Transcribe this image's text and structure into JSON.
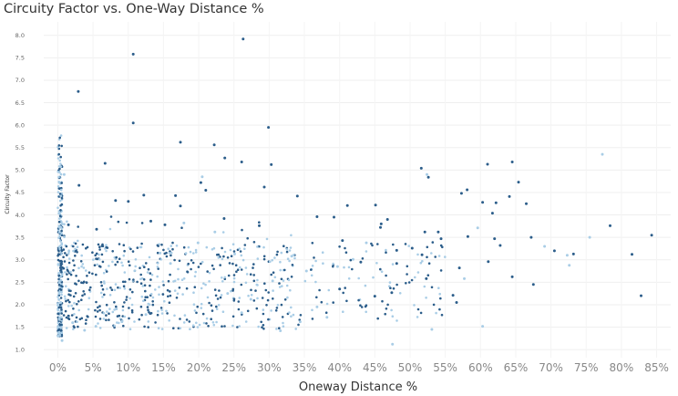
{
  "chart_data": {
    "type": "scatter",
    "title": "Circuity Factor vs. One-Way Distance %",
    "xlabel": "Oneway Distance %",
    "ylabel": "Circuity Factor",
    "xlim": [
      -0.02,
      0.87
    ],
    "ylim": [
      0.82,
      8.3
    ],
    "grid": true,
    "x_ticks": [
      0,
      0.05,
      0.1,
      0.15,
      0.2,
      0.25,
      0.3,
      0.35,
      0.4,
      0.45,
      0.5,
      0.55,
      0.6,
      0.65,
      0.7,
      0.75,
      0.8,
      0.85
    ],
    "x_tick_labels": [
      "0%",
      "5%",
      "10%",
      "15%",
      "20%",
      "25%",
      "30%",
      "35%",
      "40%",
      "45%",
      "50%",
      "55%",
      "60%",
      "65%",
      "70%",
      "75%",
      "80%",
      "85%"
    ],
    "y_ticks": [
      1.0,
      1.5,
      2.0,
      2.5,
      3.0,
      3.5,
      4.0,
      4.5,
      5.0,
      5.5,
      6.0,
      6.5,
      7.0,
      7.5,
      8.0
    ],
    "y_tick_labels": [
      "1.0",
      "1.5",
      "2.0",
      "2.5",
      "3.0",
      "3.5",
      "4.0",
      "4.5",
      "5.0",
      "5.5",
      "6.0",
      "6.5",
      "7.0",
      "7.5",
      "8.0"
    ],
    "colors": {
      "dark": "#2b5d8a",
      "light": "#a9cde6"
    },
    "series": [
      {
        "color_key": "dark",
        "points": [
          [
            0.263,
            7.92
          ],
          [
            0.107,
            7.58
          ],
          [
            0.029,
            6.75
          ],
          [
            0.107,
            6.05
          ],
          [
            0.299,
            5.95
          ],
          [
            0.174,
            5.62
          ],
          [
            0.222,
            5.56
          ],
          [
            0.237,
            5.27
          ],
          [
            0.067,
            5.15
          ],
          [
            0.261,
            5.18
          ],
          [
            0.303,
            5.12
          ],
          [
            0.516,
            5.04
          ],
          [
            0.526,
            4.84
          ],
          [
            0.61,
            5.13
          ],
          [
            0.645,
            5.18
          ],
          [
            0.654,
            4.73
          ],
          [
            0.573,
            4.48
          ],
          [
            0.581,
            4.56
          ],
          [
            0.641,
            4.41
          ],
          [
            0.03,
            4.66
          ],
          [
            0.203,
            4.72
          ],
          [
            0.293,
            4.62
          ],
          [
            0.167,
            4.43
          ],
          [
            0.082,
            4.32
          ],
          [
            0.122,
            4.44
          ],
          [
            0.1,
            4.3
          ],
          [
            0.174,
            4.2
          ],
          [
            0.21,
            4.55
          ],
          [
            0.34,
            4.42
          ],
          [
            0.411,
            4.21
          ],
          [
            0.451,
            4.22
          ],
          [
            0.603,
            4.28
          ],
          [
            0.622,
            4.27
          ],
          [
            0.665,
            4.25
          ],
          [
            0.617,
            4.04
          ],
          [
            0.368,
            3.96
          ],
          [
            0.392,
            3.95
          ],
          [
            0.236,
            3.92
          ],
          [
            0.286,
            3.76
          ],
          [
            0.152,
            3.78
          ],
          [
            0.132,
            3.86
          ],
          [
            0.055,
            3.68
          ],
          [
            0.015,
            3.78
          ],
          [
            0.459,
            3.8
          ],
          [
            0.458,
            3.72
          ],
          [
            0.521,
            3.62
          ],
          [
            0.54,
            3.62
          ],
          [
            0.582,
            3.52
          ],
          [
            0.62,
            3.47
          ],
          [
            0.628,
            3.32
          ],
          [
            0.672,
            3.5
          ],
          [
            0.705,
            3.2
          ],
          [
            0.732,
            3.13
          ],
          [
            0.784,
            3.76
          ],
          [
            0.815,
            3.12
          ],
          [
            0.843,
            3.55
          ],
          [
            0.828,
            2.2
          ],
          [
            0.675,
            2.45
          ],
          [
            0.645,
            2.62
          ],
          [
            0.611,
            2.96
          ],
          [
            0.57,
            2.82
          ],
          [
            0.561,
            2.21
          ],
          [
            0.566,
            2.05
          ],
          [
            0.523,
            2.58
          ],
          [
            0.481,
            3.21
          ],
          [
            0.481,
            2.92
          ],
          [
            0.503,
            3.26
          ],
          [
            0.517,
            3.11
          ],
          [
            0.544,
            3.47
          ],
          [
            0.474,
            2.27
          ],
          [
            0.45,
            2.19
          ],
          [
            0.404,
            3.43
          ],
          [
            0.43,
            2.95
          ],
          [
            0.4,
            2.35
          ],
          [
            0.468,
            3.9
          ]
        ]
      },
      {
        "color_key": "light",
        "points": [
          [
            0.773,
            5.35
          ],
          [
            0.755,
            3.5
          ],
          [
            0.691,
            3.3
          ],
          [
            0.723,
            3.1
          ],
          [
            0.726,
            2.88
          ],
          [
            0.603,
            1.52
          ],
          [
            0.531,
            1.45
          ],
          [
            0.475,
            1.12
          ],
          [
            0.524,
            4.9
          ],
          [
            0.577,
            2.58
          ],
          [
            0.596,
            3.71
          ],
          [
            0.438,
            3.38
          ],
          [
            0.419,
            3.01
          ],
          [
            0.397,
            2.85
          ],
          [
            0.353,
            2.75
          ],
          [
            0.332,
            3.08
          ],
          [
            0.316,
            1.42
          ],
          [
            0.344,
            1.62
          ],
          [
            0.368,
            1.95
          ],
          [
            0.382,
            1.72
          ],
          [
            0.261,
            1.82
          ],
          [
            0.241,
            2.25
          ],
          [
            0.223,
            3.62
          ],
          [
            0.251,
            3.13
          ],
          [
            0.199,
            3.38
          ],
          [
            0.179,
            3.82
          ],
          [
            0.145,
            3.15
          ],
          [
            0.125,
            1.78
          ],
          [
            0.091,
            1.62
          ],
          [
            0.054,
            1.52
          ],
          [
            0.038,
            1.43
          ],
          [
            0.021,
            1.6
          ],
          [
            0.006,
            1.2
          ],
          [
            0.004,
            2.05
          ],
          [
            0.006,
            3.8
          ],
          [
            0.009,
            4.9
          ],
          [
            0.205,
            4.85
          ],
          [
            0.16,
            2.92
          ],
          [
            0.305,
            2.53
          ],
          [
            0.274,
            2.12
          ]
        ]
      }
    ]
  }
}
